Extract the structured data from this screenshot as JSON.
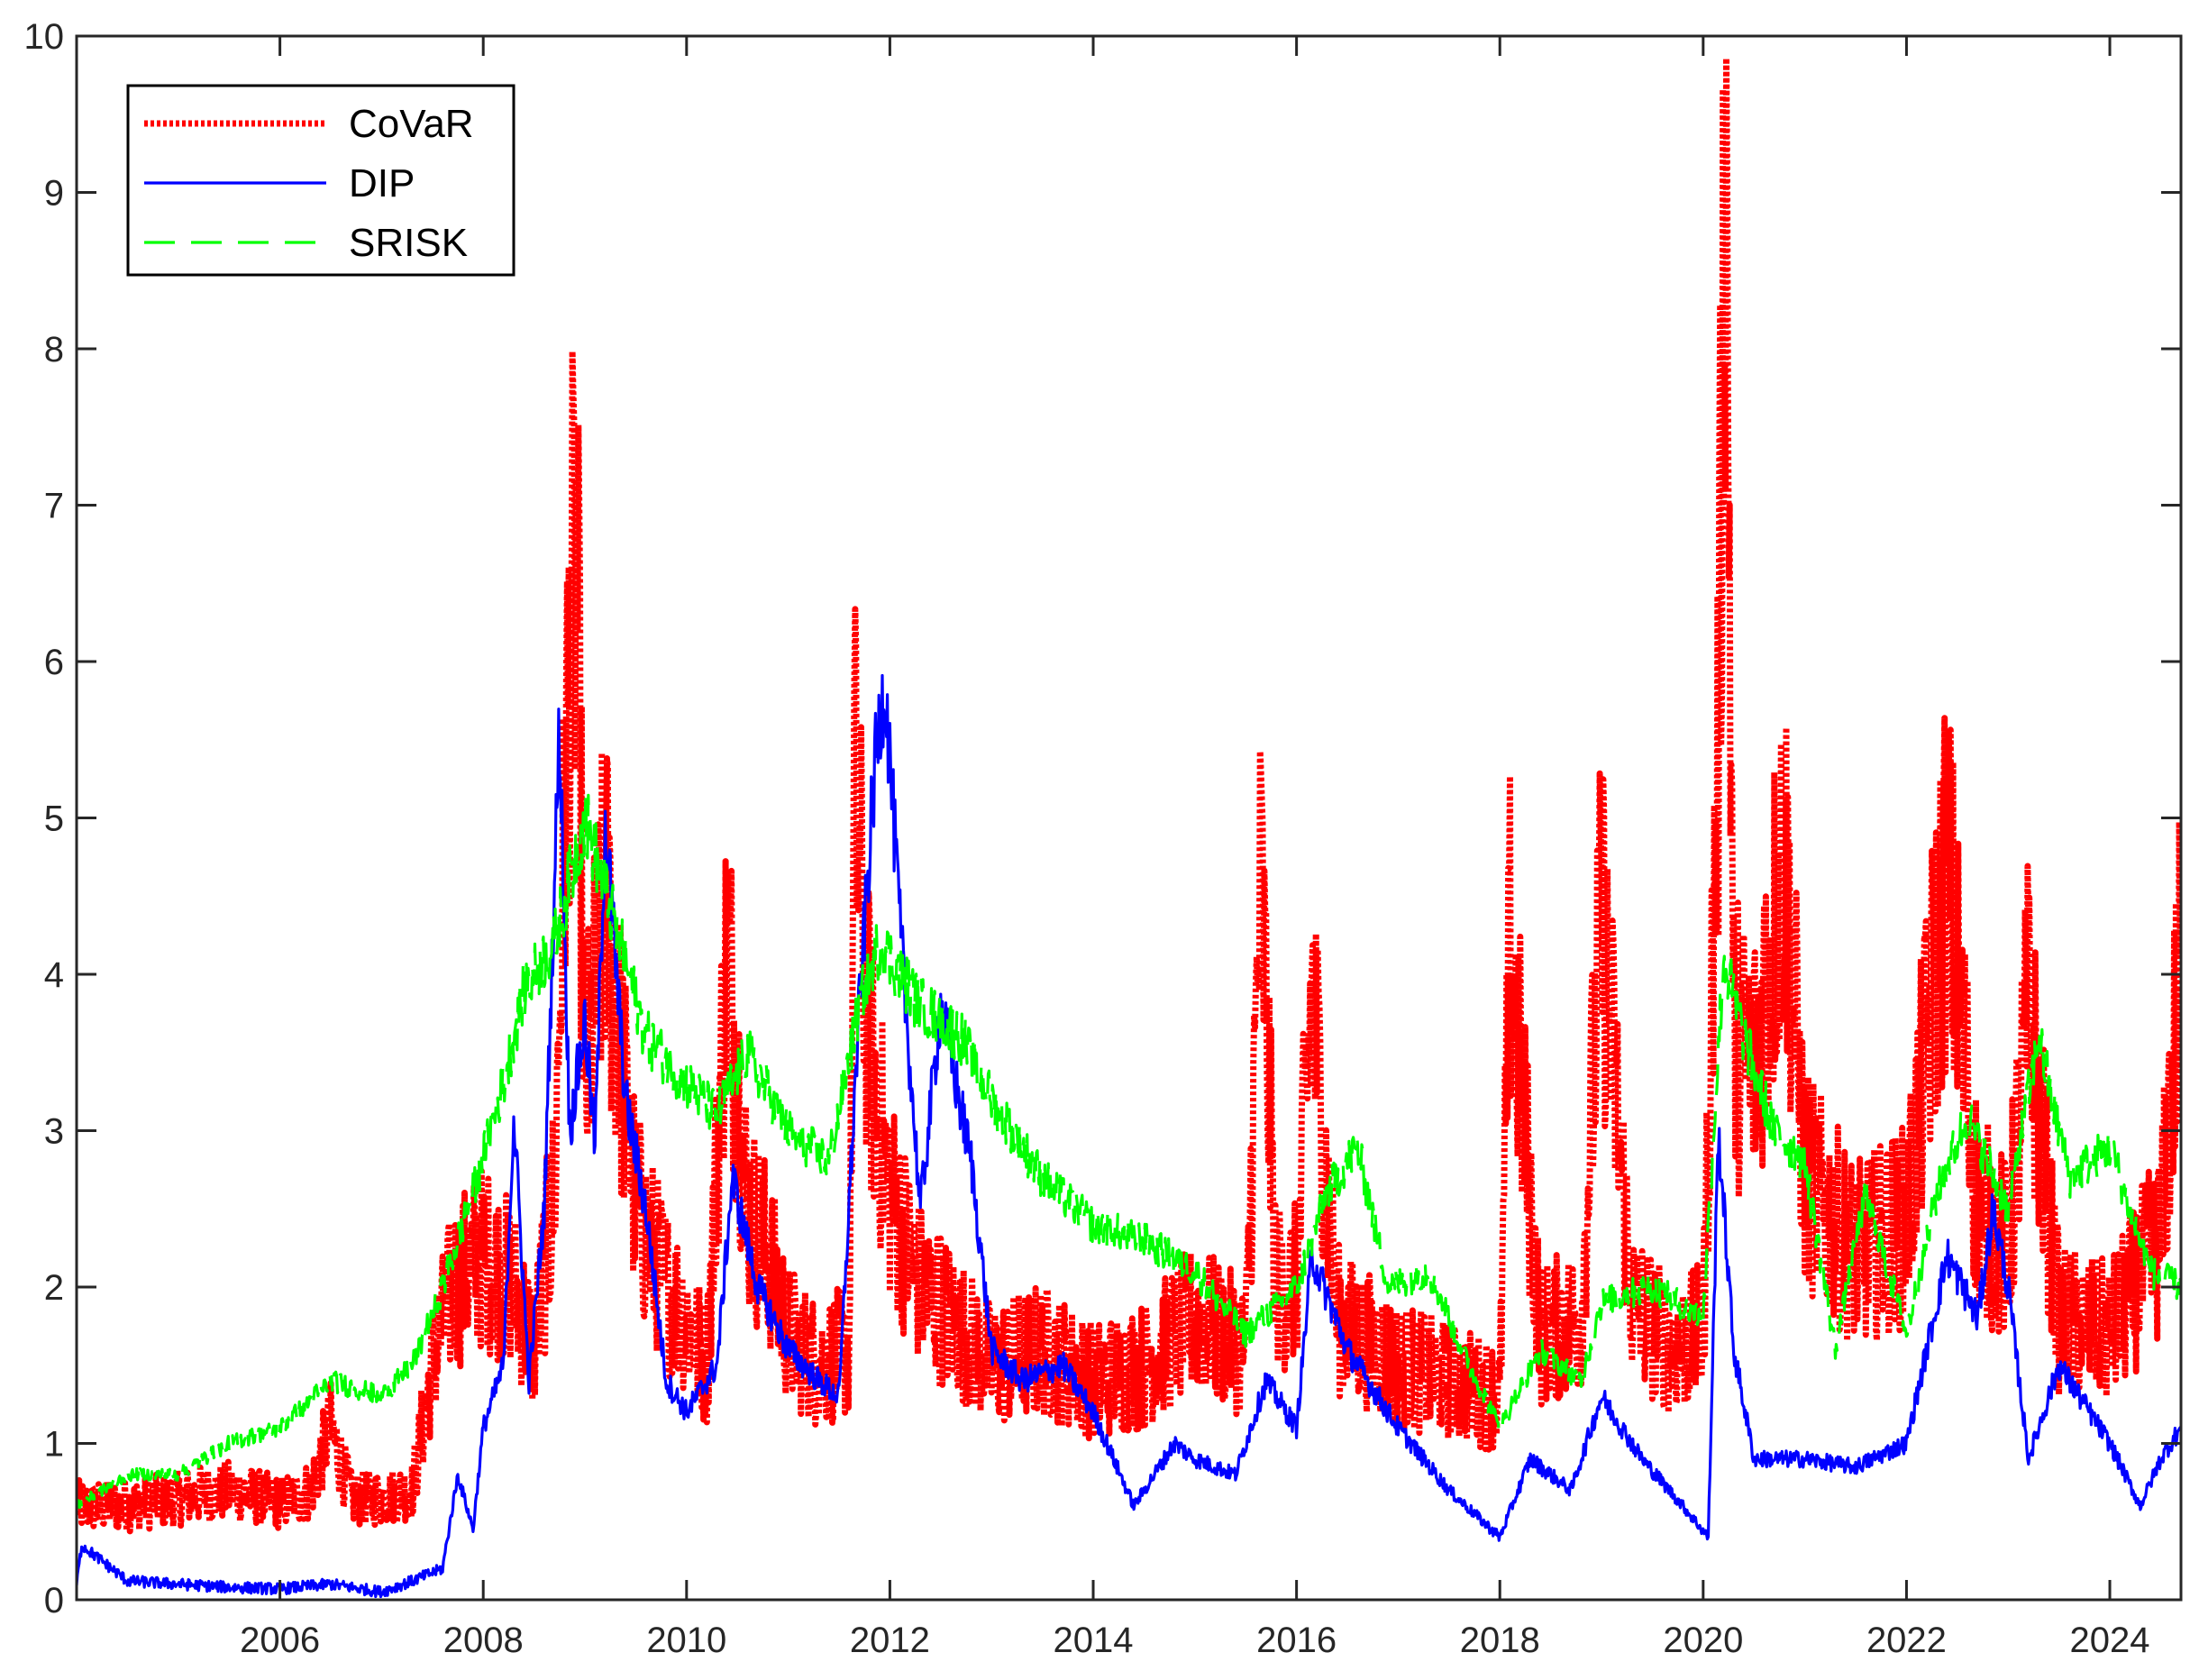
{
  "chart_data": {
    "type": "line",
    "title": "",
    "xlabel": "",
    "ylabel": "",
    "xlim": [
      2004.0,
      2024.7
    ],
    "ylim": [
      0,
      10
    ],
    "x_ticks": [
      2006,
      2008,
      2010,
      2012,
      2014,
      2016,
      2018,
      2020,
      2022,
      2024
    ],
    "x_tick_labels": [
      "2006",
      "2008",
      "2010",
      "2012",
      "2014",
      "2016",
      "2018",
      "2020",
      "2022",
      "2024"
    ],
    "y_ticks": [
      0,
      1,
      2,
      3,
      4,
      5,
      6,
      7,
      8,
      9,
      10
    ],
    "y_tick_labels": [
      "0",
      "1",
      "2",
      "3",
      "4",
      "5",
      "6",
      "7",
      "8",
      "9",
      "10"
    ],
    "grid": false,
    "legend_position": "top-left",
    "series": [
      {
        "name": "CoVaR",
        "color": "#ff0000",
        "style": "dotted",
        "points": [
          [
            2004.0,
            0.6
          ],
          [
            2004.5,
            0.6
          ],
          [
            2005.0,
            0.65
          ],
          [
            2005.5,
            0.7
          ],
          [
            2006.0,
            0.62
          ],
          [
            2006.3,
            0.7
          ],
          [
            2006.5,
            1.1
          ],
          [
            2006.7,
            0.65
          ],
          [
            2007.0,
            0.65
          ],
          [
            2007.3,
            0.7
          ],
          [
            2007.5,
            1.5
          ],
          [
            2007.7,
            2.0
          ],
          [
            2008.0,
            2.2
          ],
          [
            2008.3,
            2.0
          ],
          [
            2008.5,
            1.6
          ],
          [
            2008.7,
            2.6
          ],
          [
            2008.85,
            6.1
          ],
          [
            2008.92,
            6.6
          ],
          [
            2009.0,
            3.2
          ],
          [
            2009.2,
            4.5
          ],
          [
            2009.5,
            2.5
          ],
          [
            2009.8,
            2.0
          ],
          [
            2010.0,
            1.8
          ],
          [
            2010.2,
            1.5
          ],
          [
            2010.4,
            4.2
          ],
          [
            2010.6,
            2.5
          ],
          [
            2010.8,
            2.2
          ],
          [
            2011.0,
            1.7
          ],
          [
            2011.3,
            1.5
          ],
          [
            2011.6,
            1.6
          ],
          [
            2011.65,
            5.2
          ],
          [
            2011.8,
            3.5
          ],
          [
            2012.0,
            2.6
          ],
          [
            2012.3,
            2.0
          ],
          [
            2012.6,
            1.8
          ],
          [
            2013.0,
            1.5
          ],
          [
            2013.5,
            1.6
          ],
          [
            2014.0,
            1.4
          ],
          [
            2014.5,
            1.5
          ],
          [
            2015.0,
            1.8
          ],
          [
            2015.5,
            1.6
          ],
          [
            2015.65,
            4.6
          ],
          [
            2015.8,
            2.0
          ],
          [
            2016.0,
            2.0
          ],
          [
            2016.15,
            3.9
          ],
          [
            2016.4,
            1.8
          ],
          [
            2016.8,
            1.6
          ],
          [
            2017.0,
            1.5
          ],
          [
            2017.5,
            1.4
          ],
          [
            2018.0,
            1.3
          ],
          [
            2018.1,
            4.2
          ],
          [
            2018.4,
            1.7
          ],
          [
            2018.8,
            1.8
          ],
          [
            2019.0,
            4.4
          ],
          [
            2019.3,
            1.9
          ],
          [
            2019.7,
            1.6
          ],
          [
            2020.0,
            1.7
          ],
          [
            2020.15,
            5.5
          ],
          [
            2020.22,
            9.6
          ],
          [
            2020.3,
            3.6
          ],
          [
            2020.5,
            3.4
          ],
          [
            2020.8,
            4.8
          ],
          [
            2021.0,
            2.7
          ],
          [
            2021.5,
            2.2
          ],
          [
            2022.0,
            2.4
          ],
          [
            2022.4,
            4.7
          ],
          [
            2022.7,
            2.5
          ],
          [
            2023.0,
            2.2
          ],
          [
            2023.2,
            3.8
          ],
          [
            2023.5,
            1.8
          ],
          [
            2024.0,
            1.7
          ],
          [
            2024.5,
            2.3
          ],
          [
            2024.7,
            4.1
          ]
        ]
      },
      {
        "name": "DIP",
        "color": "#0000ff",
        "style": "solid",
        "points": [
          [
            2004.0,
            0.1
          ],
          [
            2004.05,
            0.35
          ],
          [
            2004.5,
            0.12
          ],
          [
            2005.0,
            0.1
          ],
          [
            2005.5,
            0.08
          ],
          [
            2006.0,
            0.07
          ],
          [
            2006.5,
            0.1
          ],
          [
            2007.0,
            0.05
          ],
          [
            2007.3,
            0.12
          ],
          [
            2007.6,
            0.2
          ],
          [
            2007.75,
            0.8
          ],
          [
            2007.9,
            0.45
          ],
          [
            2008.0,
            1.1
          ],
          [
            2008.2,
            1.5
          ],
          [
            2008.3,
            3.1
          ],
          [
            2008.45,
            1.4
          ],
          [
            2008.6,
            2.5
          ],
          [
            2008.75,
            5.6
          ],
          [
            2008.85,
            3.0
          ],
          [
            2009.0,
            3.7
          ],
          [
            2009.1,
            2.9
          ],
          [
            2009.2,
            5.0
          ],
          [
            2009.4,
            3.2
          ],
          [
            2009.6,
            2.5
          ],
          [
            2009.8,
            1.4
          ],
          [
            2010.0,
            1.2
          ],
          [
            2010.3,
            1.5
          ],
          [
            2010.45,
            2.7
          ],
          [
            2010.7,
            2.0
          ],
          [
            2011.0,
            1.6
          ],
          [
            2011.3,
            1.4
          ],
          [
            2011.5,
            1.3
          ],
          [
            2011.7,
            3.8
          ],
          [
            2011.85,
            5.3
          ],
          [
            2011.95,
            5.9
          ],
          [
            2012.1,
            4.3
          ],
          [
            2012.3,
            2.5
          ],
          [
            2012.5,
            3.8
          ],
          [
            2012.8,
            2.8
          ],
          [
            2013.0,
            1.6
          ],
          [
            2013.3,
            1.4
          ],
          [
            2013.7,
            1.5
          ],
          [
            2014.0,
            1.2
          ],
          [
            2014.4,
            0.6
          ],
          [
            2014.8,
            1.0
          ],
          [
            2015.0,
            0.9
          ],
          [
            2015.4,
            0.8
          ],
          [
            2015.7,
            1.4
          ],
          [
            2016.0,
            1.1
          ],
          [
            2016.15,
            2.2
          ],
          [
            2016.5,
            1.6
          ],
          [
            2016.8,
            1.3
          ],
          [
            2017.0,
            1.1
          ],
          [
            2017.5,
            0.7
          ],
          [
            2018.0,
            0.4
          ],
          [
            2018.3,
            0.9
          ],
          [
            2018.7,
            0.7
          ],
          [
            2019.0,
            1.3
          ],
          [
            2019.4,
            0.9
          ],
          [
            2019.8,
            0.6
          ],
          [
            2020.05,
            0.4
          ],
          [
            2020.15,
            3.0
          ],
          [
            2020.3,
            1.6
          ],
          [
            2020.5,
            0.9
          ],
          [
            2021.0,
            0.9
          ],
          [
            2021.5,
            0.85
          ],
          [
            2022.0,
            1.0
          ],
          [
            2022.4,
            2.2
          ],
          [
            2022.7,
            1.8
          ],
          [
            2022.85,
            2.5
          ],
          [
            2023.0,
            2.0
          ],
          [
            2023.2,
            0.9
          ],
          [
            2023.5,
            1.5
          ],
          [
            2024.0,
            1.0
          ],
          [
            2024.3,
            0.6
          ],
          [
            2024.5,
            0.9
          ],
          [
            2024.7,
            1.1
          ]
        ]
      },
      {
        "name": "SRISK",
        "color": "#00ff00",
        "style": "dashed",
        "points": [
          [
            2004.0,
            0.6
          ],
          [
            2004.5,
            0.8
          ],
          [
            2005.0,
            0.8
          ],
          [
            2005.5,
            1.0
          ],
          [
            2006.0,
            1.1
          ],
          [
            2006.5,
            1.4
          ],
          [
            2007.0,
            1.3
          ],
          [
            2007.3,
            1.5
          ],
          [
            2007.6,
            2.0
          ],
          [
            2007.9,
            2.6
          ],
          [
            2008.2,
            3.3
          ],
          [
            2008.4,
            3.9
          ],
          [
            2008.7,
            4.2
          ],
          [
            2008.85,
            4.6
          ],
          [
            2009.0,
            5.0
          ],
          [
            2009.3,
            4.3
          ],
          [
            2009.6,
            3.6
          ],
          [
            2010.0,
            3.3
          ],
          [
            2010.3,
            3.1
          ],
          [
            2010.6,
            3.5
          ],
          [
            2011.0,
            3.0
          ],
          [
            2011.4,
            2.8
          ],
          [
            2011.7,
            3.8
          ],
          [
            2011.9,
            4.2
          ],
          [
            2012.3,
            3.8
          ],
          [
            2012.7,
            3.6
          ],
          [
            2013.0,
            3.2
          ],
          [
            2013.5,
            2.7
          ],
          [
            2014.0,
            2.4
          ],
          [
            2014.5,
            2.3
          ],
          [
            2015.0,
            2.1
          ],
          [
            2015.5,
            1.7
          ],
          [
            2016.0,
            2.0
          ],
          [
            2016.3,
            2.6
          ],
          [
            2016.6,
            2.9
          ],
          [
            2016.9,
            2.0
          ],
          [
            2017.3,
            2.1
          ],
          [
            2017.7,
            1.5
          ],
          [
            2018.0,
            1.1
          ],
          [
            2018.4,
            1.6
          ],
          [
            2018.8,
            1.4
          ],
          [
            2019.0,
            1.9
          ],
          [
            2019.5,
            2.0
          ],
          [
            2020.0,
            1.8
          ],
          [
            2020.2,
            4.1
          ],
          [
            2020.4,
            3.6
          ],
          [
            2020.7,
            3.0
          ],
          [
            2021.0,
            2.8
          ],
          [
            2021.3,
            1.6
          ],
          [
            2021.6,
            2.6
          ],
          [
            2022.0,
            1.7
          ],
          [
            2022.3,
            2.6
          ],
          [
            2022.6,
            3.1
          ],
          [
            2023.0,
            2.5
          ],
          [
            2023.3,
            3.6
          ],
          [
            2023.6,
            2.7
          ],
          [
            2024.0,
            2.9
          ],
          [
            2024.4,
            2.1
          ],
          [
            2024.7,
            2.0
          ]
        ]
      }
    ]
  }
}
